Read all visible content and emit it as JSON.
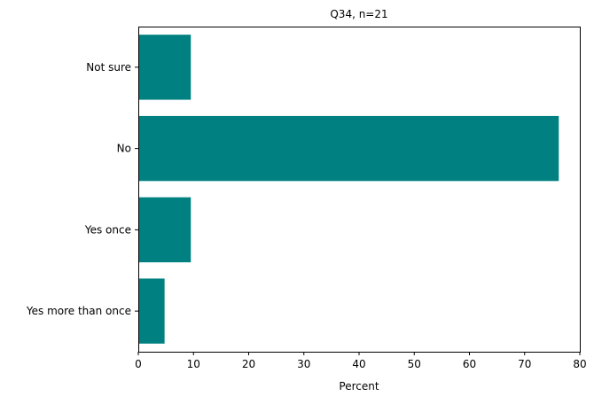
{
  "chart_data": {
    "type": "bar",
    "orientation": "horizontal",
    "title": "Q34, n=21",
    "xlabel": "Percent",
    "ylabel": "",
    "xlim": [
      0,
      80
    ],
    "xticks": [
      "0",
      "10",
      "20",
      "30",
      "40",
      "50",
      "60",
      "70",
      "80"
    ],
    "categories": [
      "Yes more than once",
      "Yes once",
      "No",
      "Not sure"
    ],
    "values": [
      4.76,
      9.52,
      76.19,
      9.52
    ],
    "bar_color": "#008080",
    "grid": false,
    "legend": "none"
  }
}
